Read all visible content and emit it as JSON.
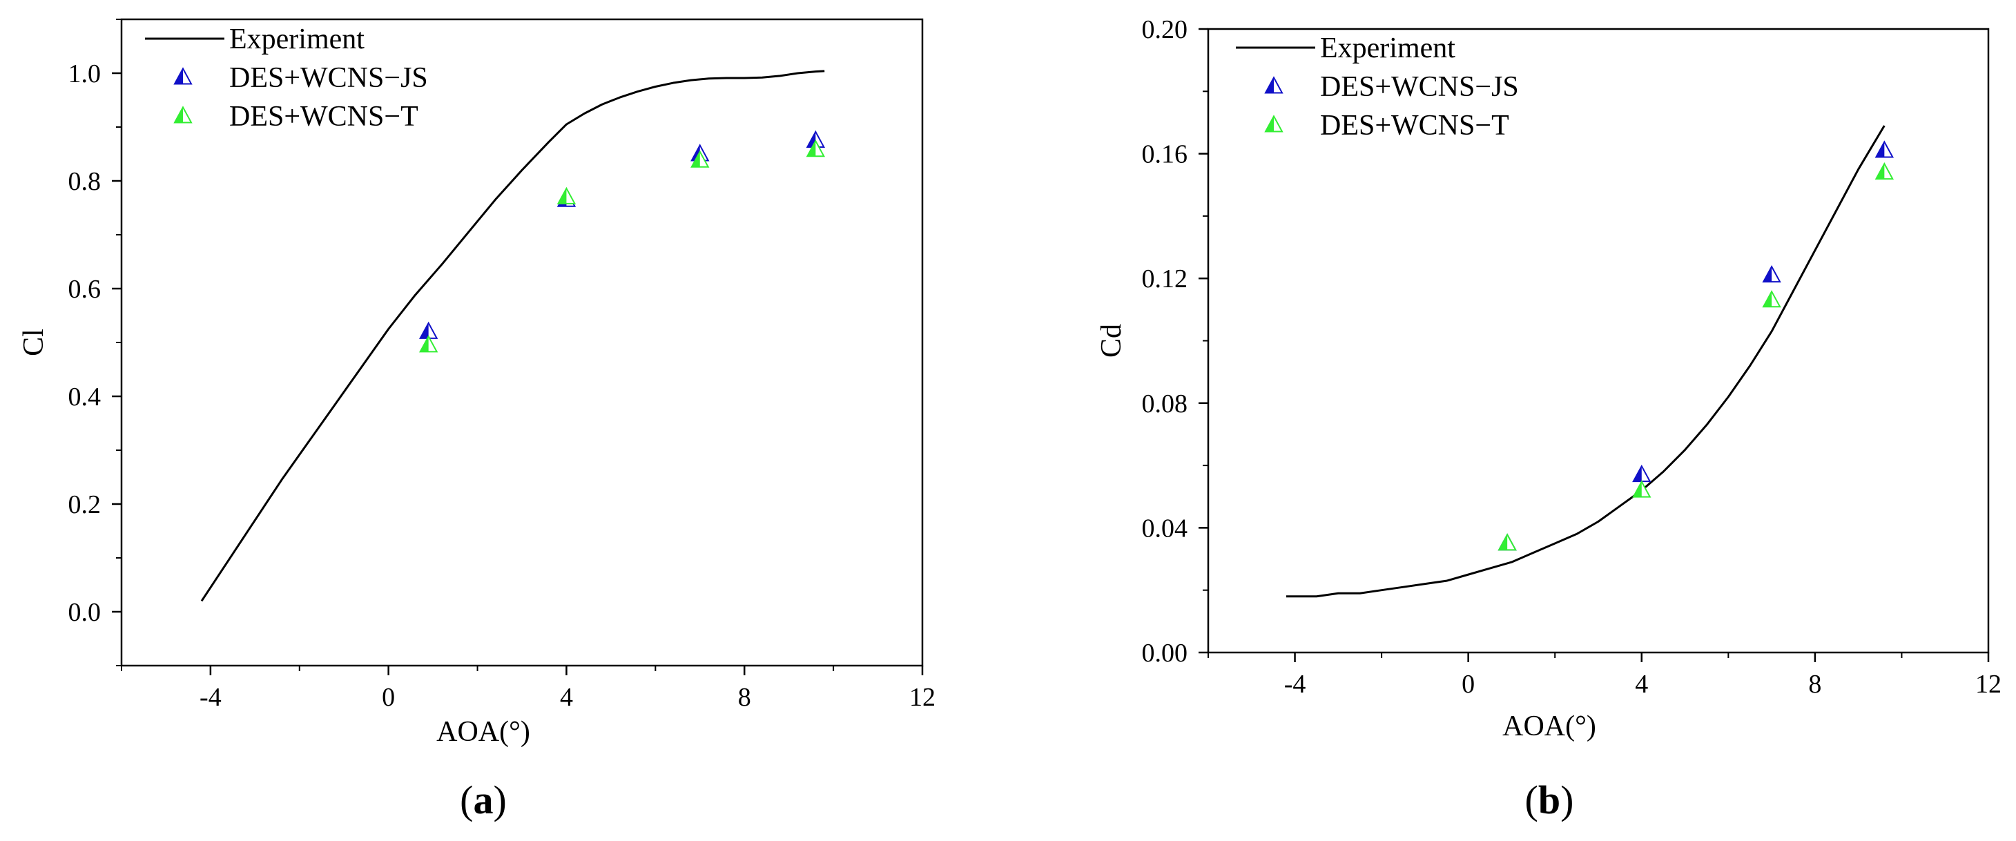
{
  "chart_data": [
    {
      "type": "line",
      "panel_label_open": "(",
      "panel_label_letter": "a",
      "panel_label_close": ")",
      "xlabel": "AOA(°)",
      "ylabel": "Cl",
      "xlim": [
        -6,
        12
      ],
      "ylim": [
        -0.1,
        1.1
      ],
      "xticks": [
        -4,
        0,
        4,
        8,
        12
      ],
      "yticks": [
        0.0,
        0.2,
        0.4,
        0.6,
        0.8,
        1.0
      ],
      "ytick_labels": [
        "0.0",
        "0.2",
        "0.4",
        "0.6",
        "0.8",
        "1.0"
      ],
      "xtick_labels": [
        "-4",
        "0",
        "4",
        "8",
        "12"
      ],
      "grid": false,
      "legend_position": "top-left",
      "series": [
        {
          "name": "Experiment",
          "kind": "line",
          "color": "#000000",
          "x": [
            -4.2,
            -3.6,
            -3.0,
            -2.4,
            -1.8,
            -1.2,
            -0.6,
            0.0,
            0.6,
            1.2,
            1.8,
            2.4,
            3.0,
            3.6,
            4.0,
            4.4,
            4.8,
            5.2,
            5.6,
            6.0,
            6.4,
            6.8,
            7.2,
            7.6,
            8.0,
            8.4,
            8.8,
            9.2,
            9.6,
            9.8
          ],
          "y": [
            0.02,
            0.095,
            0.17,
            0.245,
            0.315,
            0.385,
            0.455,
            0.525,
            0.588,
            0.645,
            0.705,
            0.765,
            0.82,
            0.872,
            0.905,
            0.925,
            0.942,
            0.955,
            0.966,
            0.975,
            0.982,
            0.987,
            0.99,
            0.991,
            0.991,
            0.992,
            0.995,
            1.0,
            1.003,
            1.004
          ]
        },
        {
          "name": "DES+WCNS−JS",
          "kind": "scatter",
          "color": "#1010c8",
          "x": [
            0.9,
            4.0,
            7.0,
            9.6
          ],
          "y": [
            0.52,
            0.765,
            0.85,
            0.875
          ]
        },
        {
          "name": "DES+WCNS−T",
          "kind": "scatter",
          "color": "#33ee33",
          "x": [
            0.9,
            4.0,
            7.0,
            9.6
          ],
          "y": [
            0.495,
            0.77,
            0.838,
            0.858
          ]
        }
      ]
    },
    {
      "type": "line",
      "panel_label_open": "(",
      "panel_label_letter": "b",
      "panel_label_close": ")",
      "xlabel": "AOA(°)",
      "ylabel": "Cd",
      "xlim": [
        -6,
        12
      ],
      "ylim": [
        0.0,
        0.2
      ],
      "xticks": [
        -4,
        0,
        4,
        8,
        12
      ],
      "yticks": [
        0.0,
        0.04,
        0.08,
        0.12,
        0.16,
        0.2
      ],
      "ytick_labels": [
        "0.00",
        "0.04",
        "0.08",
        "0.12",
        "0.16",
        "0.20"
      ],
      "xtick_labels": [
        "-4",
        "0",
        "4",
        "8",
        "12"
      ],
      "grid": false,
      "legend_position": "top-left",
      "series": [
        {
          "name": "Experiment",
          "kind": "line",
          "color": "#000000",
          "x": [
            -4.2,
            -3.5,
            -3.0,
            -2.5,
            -2.0,
            -1.5,
            -1.0,
            -0.5,
            0.0,
            0.5,
            1.0,
            1.5,
            2.0,
            2.5,
            3.0,
            3.5,
            4.0,
            4.5,
            5.0,
            5.5,
            6.0,
            6.5,
            7.0,
            7.5,
            8.0,
            8.5,
            9.0,
            9.6
          ],
          "y": [
            0.018,
            0.018,
            0.019,
            0.019,
            0.02,
            0.021,
            0.022,
            0.023,
            0.025,
            0.027,
            0.029,
            0.032,
            0.035,
            0.038,
            0.042,
            0.047,
            0.052,
            0.058,
            0.065,
            0.073,
            0.082,
            0.092,
            0.103,
            0.116,
            0.129,
            0.142,
            0.155,
            0.169
          ]
        },
        {
          "name": "DES+WCNS−JS",
          "kind": "scatter",
          "color": "#1010c8",
          "x": [
            0.9,
            4.0,
            7.0,
            9.6
          ],
          "y": [
            0.035,
            0.057,
            0.121,
            0.161
          ]
        },
        {
          "name": "DES+WCNS−T",
          "kind": "scatter",
          "color": "#33ee33",
          "x": [
            0.9,
            4.0,
            7.0,
            9.6
          ],
          "y": [
            0.035,
            0.052,
            0.113,
            0.154
          ]
        }
      ]
    }
  ]
}
